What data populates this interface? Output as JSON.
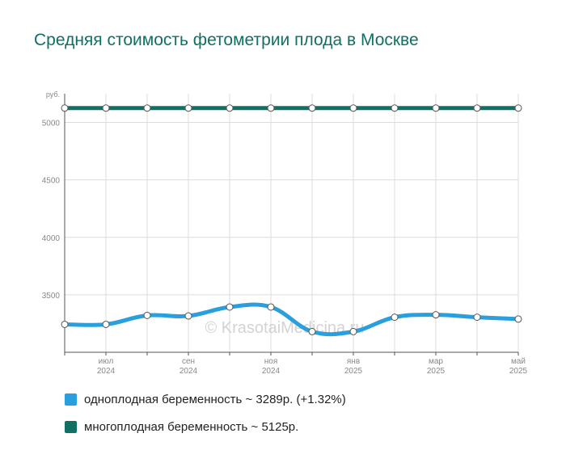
{
  "chart_data": {
    "type": "line",
    "title": "Средняя стоимость фетометрии плода в Москве",
    "y_unit": "руб.",
    "ylim": [
      3000,
      5250
    ],
    "y_ticks": [
      3500,
      4000,
      4500,
      5000
    ],
    "x_tick_labels": [
      {
        "month": "июл",
        "year": "2024",
        "index": 1
      },
      {
        "month": "сен",
        "year": "2024",
        "index": 3
      },
      {
        "month": "ноя",
        "year": "2024",
        "index": 5
      },
      {
        "month": "янв",
        "year": "2025",
        "index": 7
      },
      {
        "month": "мар",
        "year": "2025",
        "index": 9
      },
      {
        "month": "май",
        "year": "2025",
        "index": 11
      }
    ],
    "categories": [
      "2024-06",
      "2024-07",
      "2024-08",
      "2024-09",
      "2024-10",
      "2024-11",
      "2024-12",
      "2025-01",
      "2025-02",
      "2025-03",
      "2025-04",
      "2025-05"
    ],
    "series": [
      {
        "name": "однoплодная беременность",
        "color": "#2a9fde",
        "values": [
          3243,
          3243,
          3321,
          3316,
          3394,
          3394,
          3180,
          3180,
          3305,
          3326,
          3305,
          3289
        ]
      },
      {
        "name": "многоплодная беременность",
        "color": "#0f7063",
        "values": [
          5125,
          5125,
          5125,
          5125,
          5125,
          5125,
          5125,
          5125,
          5125,
          5125,
          5125,
          5125
        ]
      }
    ],
    "watermark": "© KrasotaiMedicina.ru",
    "grid": true
  },
  "legend": [
    {
      "label": "однoплодная беременность ~ 3289р. (+1.32%)",
      "color": "#2a9fde"
    },
    {
      "label": "многоплодная беременность ~ 5125р.",
      "color": "#0f7063"
    }
  ]
}
